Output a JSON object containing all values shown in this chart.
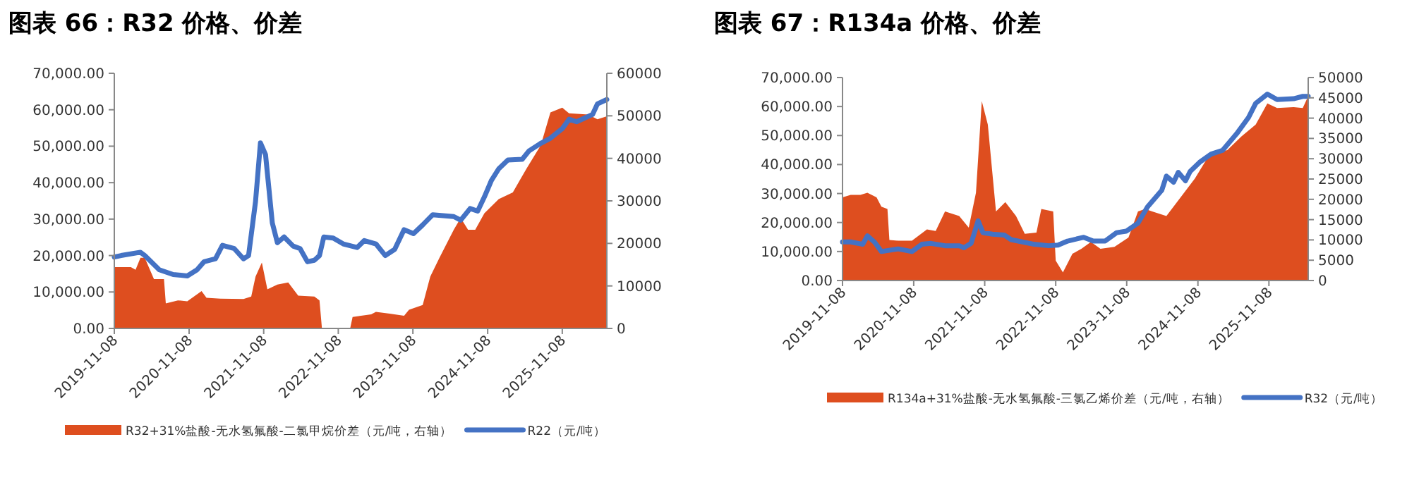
{
  "chart_data": [
    {
      "type": "line",
      "title": "图表 66：R32 价格、价差",
      "legend": "bottom",
      "xlim": [
        "2019-11-08",
        "2026-06-14"
      ],
      "xticks": [
        "2019-11-08",
        "2020-11-08",
        "2021-11-08",
        "2022-11-08",
        "2023-11-08",
        "2024-11-08",
        "2025-11-08"
      ],
      "ylim": [
        0,
        70000
      ],
      "yticks": [
        {
          "value": 0,
          "label": "0.00"
        },
        {
          "value": 10000,
          "label": "10,000.00"
        },
        {
          "value": 20000,
          "label": "20,000.00"
        },
        {
          "value": 30000,
          "label": "30,000.00"
        },
        {
          "value": 40000,
          "label": "40,000.00"
        },
        {
          "value": 50000,
          "label": "50,000.00"
        },
        {
          "value": 60000,
          "label": "60,000.00"
        },
        {
          "value": 70000,
          "label": "70,000.00"
        }
      ],
      "y2lim": [
        0,
        60000
      ],
      "y2ticks": [
        0,
        10000,
        20000,
        30000,
        40000,
        50000,
        60000
      ],
      "series": [
        {
          "name": "R32+31%盐酸-无水氢氟酸-二氯甲烷价差（元/吨，右轴）",
          "type": "area",
          "axis": "y2",
          "color": "#de4e1f",
          "x": [
            "2019-11-08",
            "2020-01-28",
            "2020-02-20",
            "2020-03-15",
            "2020-04-05",
            "2020-05-20",
            "2020-07-08",
            "2020-07-17",
            "2020-09-14",
            "2020-10-30",
            "2021-01-08",
            "2021-02-01",
            "2021-04-10",
            "2021-08-01",
            "2021-09-08",
            "2021-09-29",
            "2021-10-30",
            "2021-11-26",
            "2022-01-14",
            "2022-03-08",
            "2022-04-26",
            "2022-07-14",
            "2022-08-08",
            "2022-08-20",
            "2022-08-29",
            "2023-01-05",
            "2023-01-17",
            "2023-04-18",
            "2023-05-11",
            "2023-07-17",
            "2023-09-26",
            "2023-10-20",
            "2023-12-26",
            "2024-02-01",
            "2024-03-17",
            "2024-05-26",
            "2024-06-29",
            "2024-08-04",
            "2024-09-08",
            "2024-10-23",
            "2025-01-01",
            "2025-03-11",
            "2025-05-17",
            "2025-07-26",
            "2025-09-11",
            "2025-11-08",
            "2025-12-11",
            "2026-03-15",
            "2026-04-29",
            "2026-06-14"
          ],
          "values": [
            14400,
            14400,
            13800,
            16600,
            16600,
            11600,
            11600,
            5900,
            6600,
            6400,
            8800,
            7200,
            7000,
            6900,
            7500,
            12200,
            15500,
            9200,
            10300,
            10800,
            7700,
            7500,
            6600,
            0,
            0,
            0,
            2700,
            3300,
            3900,
            3500,
            3000,
            4400,
            5500,
            12200,
            16600,
            23200,
            26000,
            23200,
            23200,
            27100,
            30400,
            32000,
            37600,
            43100,
            50800,
            51900,
            50600,
            50300,
            49200,
            49900
          ]
        },
        {
          "name": "R22（元/吨）",
          "type": "line",
          "color": "#4472c4",
          "x": [
            "2019-11-08",
            "2019-12-11",
            "2020-03-15",
            "2020-04-05",
            "2020-06-15",
            "2020-08-22",
            "2020-10-30",
            "2020-12-17",
            "2021-01-20",
            "2021-03-17",
            "2021-04-20",
            "2021-06-17",
            "2021-08-01",
            "2021-08-26",
            "2021-09-29",
            "2021-10-23",
            "2021-11-17",
            "2021-12-20",
            "2022-01-14",
            "2022-02-16",
            "2022-04-01",
            "2022-05-05",
            "2022-06-10",
            "2022-07-14",
            "2022-08-08",
            "2022-08-29",
            "2022-10-14",
            "2022-12-02",
            "2023-02-08",
            "2023-03-15",
            "2023-05-11",
            "2023-06-26",
            "2023-08-11",
            "2023-09-26",
            "2023-11-11",
            "2023-12-26",
            "2024-02-13",
            "2024-05-26",
            "2024-06-29",
            "2024-08-14",
            "2024-09-20",
            "2024-10-23",
            "2024-11-26",
            "2025-01-01",
            "2025-02-15",
            "2025-04-26",
            "2025-05-29",
            "2025-07-26",
            "2025-09-11",
            "2025-11-08",
            "2025-12-11",
            "2026-01-17",
            "2026-04-05",
            "2026-04-29",
            "2026-06-14"
          ],
          "values": [
            19600,
            20000,
            20900,
            20000,
            16100,
            14800,
            14400,
            16100,
            18300,
            19100,
            22800,
            21900,
            19100,
            20000,
            34800,
            50900,
            47700,
            29000,
            23500,
            25100,
            22600,
            21900,
            18300,
            18700,
            20000,
            25100,
            24800,
            23200,
            22200,
            24100,
            23200,
            20000,
            21700,
            27100,
            26000,
            28400,
            31200,
            30700,
            29700,
            32900,
            32200,
            36100,
            40600,
            43800,
            46200,
            46400,
            48700,
            50800,
            52200,
            54800,
            57400,
            56700,
            58700,
            61600,
            62800
          ]
        }
      ]
    },
    {
      "type": "line",
      "title": "图表 67：R134a 价格、价差",
      "legend": "bottom",
      "xlim": [
        "2019-11-08",
        "2026-05-29"
      ],
      "xticks": [
        "2019-11-08",
        "2020-11-08",
        "2021-11-08",
        "2022-11-08",
        "2023-11-08",
        "2024-11-08",
        "2025-11-08"
      ],
      "ylim": [
        0,
        70000
      ],
      "yticks": [
        {
          "value": 0,
          "label": "0.00"
        },
        {
          "value": 10000,
          "label": "10,000.00"
        },
        {
          "value": 20000,
          "label": "20,000.00"
        },
        {
          "value": 30000,
          "label": "30,000.00"
        },
        {
          "value": 40000,
          "label": "40,000.00"
        },
        {
          "value": 50000,
          "label": "50,000.00"
        },
        {
          "value": 60000,
          "label": "60,000.00"
        },
        {
          "value": 70000,
          "label": "70,000.00"
        }
      ],
      "y2lim": [
        0,
        50000
      ],
      "y2ticks": [
        0,
        5000,
        10000,
        15000,
        20000,
        25000,
        30000,
        35000,
        40000,
        45000,
        50000
      ],
      "series": [
        {
          "name": "R134a+31%盐酸-无水氢氟酸-三氯乙烯价差（元/吨，右轴）",
          "type": "area",
          "axis": "y2",
          "color": "#de4e1f",
          "x": [
            "2019-11-08",
            "2019-12-20",
            "2020-02-08",
            "2020-03-15",
            "2020-05-01",
            "2020-05-26",
            "2020-06-26",
            "2020-07-06",
            "2020-08-20",
            "2020-10-30",
            "2021-01-15",
            "2021-03-01",
            "2021-04-18",
            "2021-06-30",
            "2021-08-18",
            "2021-09-24",
            "2021-10-24",
            "2021-11-24",
            "2022-01-05",
            "2022-02-22",
            "2022-04-18",
            "2022-06-02",
            "2022-08-01",
            "2022-08-26",
            "2022-10-26",
            "2022-11-08",
            "2022-12-15",
            "2023-02-02",
            "2023-03-20",
            "2023-05-08",
            "2023-06-26",
            "2023-09-06",
            "2023-11-17",
            "2024-01-05",
            "2024-02-11",
            "2024-03-18",
            "2024-05-30",
            "2024-08-11",
            "2024-10-23",
            "2025-01-05",
            "2025-04-08",
            "2025-06-20",
            "2025-09-01",
            "2025-10-31",
            "2025-12-20",
            "2026-03-15",
            "2026-05-01",
            "2026-05-29"
          ],
          "values": [
            20500,
            21100,
            21100,
            21600,
            20500,
            18200,
            17600,
            10000,
            9800,
            9800,
            12600,
            12200,
            17000,
            15900,
            13000,
            21600,
            44200,
            38400,
            17000,
            19300,
            15900,
            11500,
            11800,
            17600,
            17000,
            4900,
            2000,
            6600,
            7800,
            9500,
            7800,
            8300,
            10600,
            17000,
            17600,
            17000,
            15900,
            20500,
            25100,
            30900,
            32100,
            35500,
            38400,
            43600,
            42500,
            42700,
            42500,
            45400
          ]
        },
        {
          "name": "R32（元/吨）",
          "type": "line",
          "color": "#4472c4",
          "x": [
            "2019-11-08",
            "2019-12-20",
            "2020-02-20",
            "2020-03-15",
            "2020-04-20",
            "2020-05-26",
            "2020-08-20",
            "2020-10-30",
            "2020-12-20",
            "2021-02-05",
            "2021-04-18",
            "2021-06-30",
            "2021-07-24",
            "2021-08-30",
            "2021-10-05",
            "2021-10-30",
            "2021-12-18",
            "2022-02-16",
            "2022-03-24",
            "2022-07-20",
            "2022-10-02",
            "2022-11-20",
            "2023-01-08",
            "2023-04-01",
            "2023-05-20",
            "2023-07-20",
            "2023-09-17",
            "2023-11-05",
            "2024-01-05",
            "2024-02-23",
            "2024-05-06",
            "2024-05-30",
            "2024-07-06",
            "2024-07-30",
            "2024-09-05",
            "2024-09-29",
            "2024-11-17",
            "2025-01-15",
            "2025-03-15",
            "2025-05-26",
            "2025-07-26",
            "2025-09-01",
            "2025-10-31",
            "2025-12-20",
            "2026-03-15",
            "2026-05-01",
            "2026-05-29"
          ],
          "values": [
            13300,
            13300,
            12500,
            15400,
            13300,
            10000,
            10900,
            10000,
            12500,
            12800,
            12000,
            12000,
            11300,
            12800,
            20600,
            16500,
            16000,
            15700,
            14100,
            12500,
            12000,
            12200,
            13600,
            14900,
            13600,
            13600,
            16500,
            17000,
            19800,
            25400,
            31100,
            36000,
            33900,
            37300,
            34400,
            37600,
            40800,
            43600,
            44900,
            50600,
            56200,
            61100,
            64300,
            62400,
            62700,
            63500,
            63500
          ]
        }
      ]
    }
  ]
}
